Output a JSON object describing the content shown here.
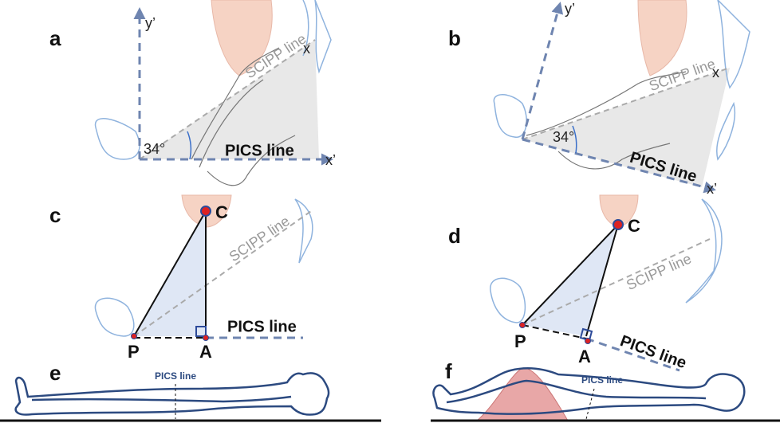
{
  "panels": [
    {
      "label": "a",
      "axis_y": "y’",
      "axis_x": "x’",
      "scipp": "SCIPP line",
      "pics": "PICS line",
      "angle": "34°",
      "point": "x"
    },
    {
      "label": "b",
      "axis_y": "y’",
      "axis_x": "x’",
      "scipp": "SCIPP line",
      "pics": "PICS line",
      "angle": "34°",
      "point": "x"
    },
    {
      "label": "c",
      "scipp": "SCIPP line",
      "pics": "PICS line",
      "points": [
        "C",
        "P",
        "A"
      ]
    },
    {
      "label": "d",
      "scipp": "SCIPP line",
      "pics": "PICS line",
      "points": [
        "C",
        "P",
        "A"
      ]
    },
    {
      "label": "e",
      "pics": "PICS line"
    },
    {
      "label": "f",
      "pics": "PICS line"
    }
  ]
}
